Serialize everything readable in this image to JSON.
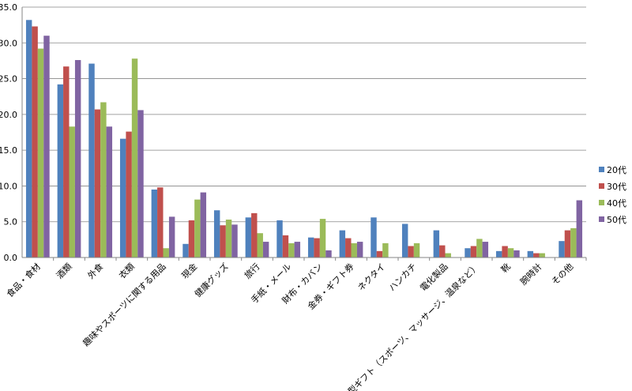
{
  "chart_data": {
    "type": "bar",
    "categories": [
      "食品・食材",
      "酒類",
      "外食",
      "衣類",
      "趣味やスポーツに関する用品",
      "現金",
      "健康グッズ",
      "旅行",
      "手紙・メール",
      "財布・カバン",
      "金券・ギフト券",
      "ネクタイ",
      "ハンカチ",
      "電化製品",
      "体験型ギフト（スポーツ、マッサージ、温泉など）",
      "靴",
      "腕時計",
      "その他"
    ],
    "series": [
      {
        "name": "20代",
        "color": "#4f81bd",
        "values": [
          33.2,
          24.2,
          27.1,
          16.6,
          9.5,
          1.9,
          6.6,
          5.6,
          5.2,
          2.8,
          3.8,
          5.6,
          4.7,
          3.8,
          1.3,
          0.9,
          0.9,
          2.3
        ]
      },
      {
        "name": "30代",
        "color": "#c0504d",
        "values": [
          32.3,
          26.7,
          20.7,
          17.6,
          9.8,
          5.2,
          4.5,
          6.2,
          3.1,
          2.7,
          2.7,
          0.9,
          1.6,
          1.7,
          1.6,
          1.6,
          0.6,
          3.8
        ]
      },
      {
        "name": "40代",
        "color": "#9bbb59",
        "values": [
          29.2,
          18.3,
          21.7,
          27.8,
          1.3,
          8.1,
          5.3,
          3.4,
          2.0,
          5.4,
          2.0,
          2.0,
          2.0,
          0.6,
          2.6,
          1.3,
          0.6,
          4.1
        ]
      },
      {
        "name": "50代",
        "color": "#8064a2",
        "values": [
          31.0,
          27.6,
          18.3,
          20.6,
          5.7,
          9.1,
          4.6,
          2.2,
          2.2,
          1.0,
          2.2,
          0,
          0,
          0,
          2.2,
          1.0,
          0,
          8.0
        ]
      }
    ],
    "ylim": [
      0,
      35
    ],
    "yticks": [
      {
        "value": 0,
        "label": "0.0"
      },
      {
        "value": 5,
        "label": "5.0"
      },
      {
        "value": 10,
        "label": "10.0"
      },
      {
        "value": 15,
        "label": "15.0"
      },
      {
        "value": 20,
        "label": "20.0"
      },
      {
        "value": 25,
        "label": "25.0"
      },
      {
        "value": 30,
        "label": "30.0"
      },
      {
        "value": 35,
        "label": "35.0"
      }
    ],
    "grid": true,
    "legend": "right"
  }
}
